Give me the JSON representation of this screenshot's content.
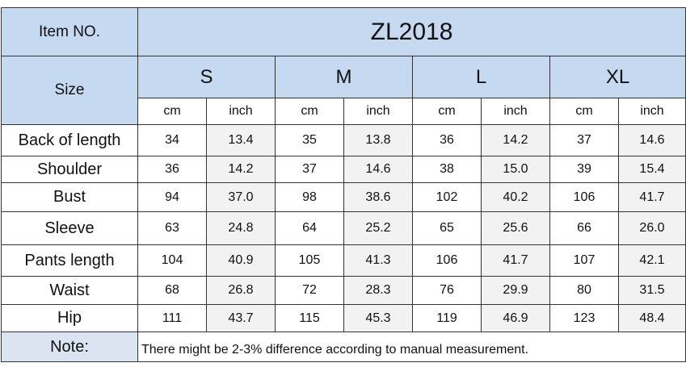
{
  "header": {
    "item_label": "Item NO.",
    "model": "ZL2018",
    "size_label": "Size",
    "sizes": [
      "S",
      "M",
      "L",
      "XL"
    ],
    "units": [
      "cm",
      "inch"
    ]
  },
  "rows": [
    {
      "label": "Back of length",
      "values": [
        "34",
        "13.4",
        "35",
        "13.8",
        "36",
        "14.2",
        "37",
        "14.6"
      ]
    },
    {
      "label": "Shoulder",
      "values": [
        "36",
        "14.2",
        "37",
        "14.6",
        "38",
        "15.0",
        "39",
        "15.4"
      ]
    },
    {
      "label": "Bust",
      "values": [
        "94",
        "37.0",
        "98",
        "38.6",
        "102",
        "40.2",
        "106",
        "41.7"
      ]
    },
    {
      "label": "Sleeve",
      "values": [
        "63",
        "24.8",
        "64",
        "25.2",
        "65",
        "25.6",
        "66",
        "26.0"
      ]
    },
    {
      "label": "Pants  length",
      "values": [
        "104",
        "40.9",
        "105",
        "41.3",
        "106",
        "41.7",
        "107",
        "42.1"
      ]
    },
    {
      "label": "Waist",
      "values": [
        "68",
        "26.8",
        "72",
        "28.3",
        "76",
        "29.9",
        "80",
        "31.5"
      ]
    },
    {
      "label": "Hip",
      "values": [
        "111",
        "43.7",
        "115",
        "45.3",
        "119",
        "46.9",
        "123",
        "48.4"
      ]
    }
  ],
  "note": {
    "label": "Note:",
    "text": "There might be 2-3% difference according to manual measurement."
  },
  "colors": {
    "header_bg": "#c5d9f1",
    "alt_cell_bg": "#f2f2f2",
    "border": "#333333"
  }
}
